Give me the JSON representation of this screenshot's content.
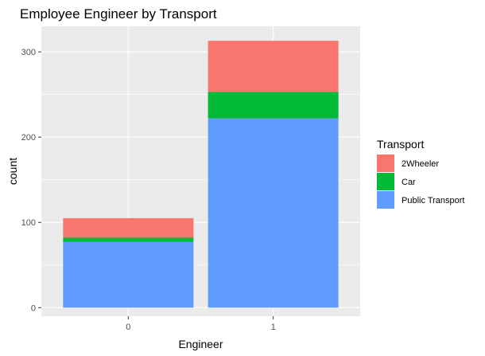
{
  "chart_data": {
    "type": "bar",
    "stacked": true,
    "title": "Employee Engineer by Transport",
    "xlabel": "Engineer",
    "ylabel": "count",
    "categories": [
      "0",
      "1"
    ],
    "ylim": [
      -10,
      330
    ],
    "yticks": [
      0,
      100,
      200,
      300
    ],
    "grid": true,
    "legend": {
      "title": "Transport",
      "placement": "right"
    },
    "series": [
      {
        "name": "Public Transport",
        "color": "#619CFF",
        "values": [
          77,
          222
        ]
      },
      {
        "name": "Car",
        "color": "#00BA38",
        "values": [
          5,
          31
        ]
      },
      {
        "name": "2Wheeler",
        "color": "#F8766D",
        "values": [
          23,
          60
        ]
      }
    ],
    "legend_order": [
      "2Wheeler",
      "Car",
      "Public Transport"
    ]
  }
}
